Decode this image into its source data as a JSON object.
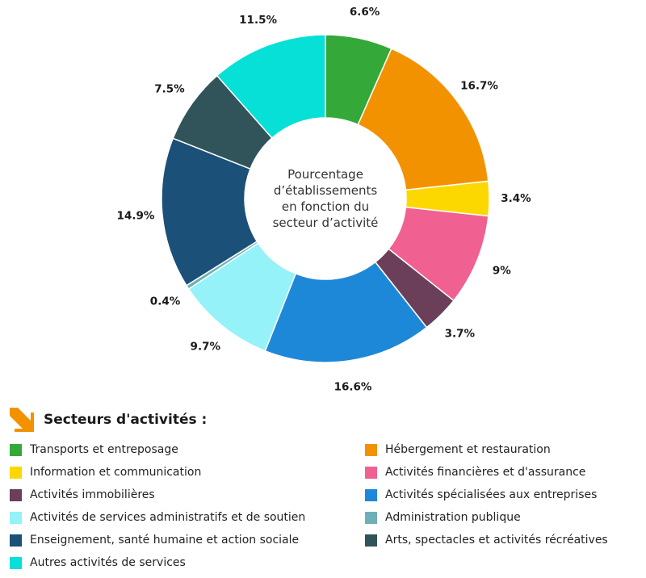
{
  "chart_data": {
    "type": "pie",
    "donut": true,
    "center_text": [
      "Pourcentage",
      "d’établissements",
      "en fonction du",
      "secteur d’activité"
    ],
    "slices": [
      {
        "name": "Transports et entreposage",
        "value": 6.6,
        "label": "6.6%",
        "color": "#34a838"
      },
      {
        "name": "Hébergement et restauration",
        "value": 16.7,
        "label": "16.7%",
        "color": "#f39200"
      },
      {
        "name": "Information et communication",
        "value": 3.4,
        "label": "3.4%",
        "color": "#fdd800"
      },
      {
        "name": "Activités financières et d'assurance",
        "value": 9,
        "label": "9%",
        "color": "#f06090"
      },
      {
        "name": "Activités immobilières",
        "value": 3.7,
        "label": "3.7%",
        "color": "#6b3f5a"
      },
      {
        "name": "Activités spécialisées aux entreprises",
        "value": 16.6,
        "label": "16.6%",
        "color": "#1e88d8"
      },
      {
        "name": "Activités de services administratifs et de soutien",
        "value": 9.7,
        "label": "9.7%",
        "color": "#94f2f8"
      },
      {
        "name": "Administration publique",
        "value": 0.4,
        "label": "0.4%",
        "color": "#6fb0b8"
      },
      {
        "name": "Enseignement, santé humaine et action sociale",
        "value": 14.9,
        "label": "14.9%",
        "color": "#1b5078"
      },
      {
        "name": "Arts, spectacles et activités récréatives",
        "value": 7.5,
        "label": "7.5%",
        "color": "#30545a"
      },
      {
        "name": "Autres activités de services",
        "value": 11.5,
        "label": "11.5%",
        "color": "#06e0d6"
      }
    ]
  },
  "legend": {
    "title": "Secteurs d'activités :",
    "arrow_color": "#f39200",
    "items": [
      {
        "label": "Transports et entreposage",
        "color": "#34a838",
        "col": 0,
        "row": 0
      },
      {
        "label": "Hébergement et restauration",
        "color": "#f39200",
        "col": 1,
        "row": 0
      },
      {
        "label": "Information et communication",
        "color": "#fdd800",
        "col": 0,
        "row": 1
      },
      {
        "label": "Activités financières et d'assurance",
        "color": "#f06090",
        "col": 1,
        "row": 1
      },
      {
        "label": "Activités immobilières",
        "color": "#6b3f5a",
        "col": 0,
        "row": 2
      },
      {
        "label": "Activités spécialisées aux entreprises",
        "color": "#1e88d8",
        "col": 1,
        "row": 2
      },
      {
        "label": "Activités de services administratifs et de soutien",
        "color": "#94f2f8",
        "col": 0,
        "row": 3
      },
      {
        "label": "Administration publique",
        "color": "#6fb0b8",
        "col": 1,
        "row": 3
      },
      {
        "label": "Enseignement, santé humaine et action sociale",
        "color": "#1b5078",
        "col": 0,
        "row": 4
      },
      {
        "label": "Arts, spectacles et activités récréatives",
        "color": "#30545a",
        "col": 1,
        "row": 4
      },
      {
        "label": "Autres activités de services",
        "color": "#06e0d6",
        "col": 0,
        "row": 5
      }
    ]
  }
}
